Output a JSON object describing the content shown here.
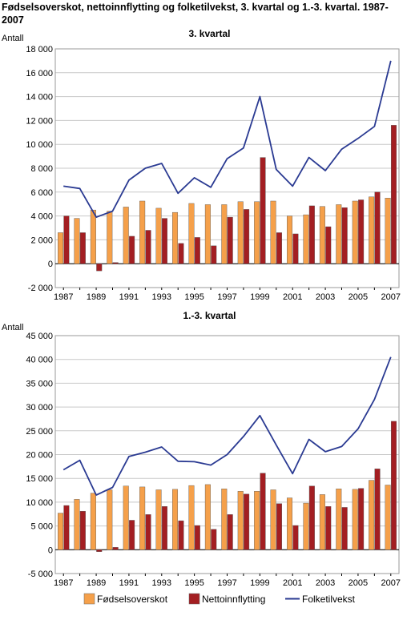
{
  "title": "Fødselsoverskot, nettoinnflytting og folketilvekst, 3. kvartal og 1.-3. kvartal. 1987-2007",
  "colors": {
    "fodselsoverskot": "#f5a04a",
    "nettoinnflytting": "#a31e22",
    "folketilvekst": "#2a3a92",
    "grid": "#c8c8c8"
  },
  "legend": [
    "Fødselsoverskot",
    "Nettoinnflytting",
    "Folketilvekst"
  ],
  "chart_data": [
    {
      "type": "bar",
      "title": "3. kvartal",
      "ylabel": "Antall",
      "ylim": [
        -2000,
        18000
      ],
      "yticks": [
        -2000,
        0,
        2000,
        4000,
        6000,
        8000,
        10000,
        12000,
        14000,
        16000,
        18000
      ],
      "ytick_labels": [
        "-2 000",
        "0",
        "2 000",
        "4 000",
        "6 000",
        "8 000",
        "10 000",
        "12 000",
        "14 000",
        "16 000",
        "18 000"
      ],
      "categories": [
        "1987",
        "1988",
        "1989",
        "1990",
        "1991",
        "1992",
        "1993",
        "1994",
        "1995",
        "1996",
        "1997",
        "1998",
        "1999",
        "2000",
        "2001",
        "2002",
        "2003",
        "2004",
        "2005",
        "2006",
        "2007"
      ],
      "xtick_labels": [
        "1987",
        "",
        "1989",
        "",
        "1991",
        "",
        "1993",
        "",
        "1995",
        "",
        "1997",
        "",
        "1999",
        "",
        "2001",
        "",
        "2003",
        "",
        "2005",
        "",
        "2007"
      ],
      "grid": true,
      "series": [
        {
          "name": "Fødselsoverskot",
          "type": "bar",
          "values": [
            2600,
            3800,
            4500,
            4400,
            4750,
            5250,
            4650,
            4300,
            5050,
            4950,
            4950,
            5200,
            5200,
            5250,
            4000,
            4100,
            4800,
            4950,
            5250,
            5600,
            5500
          ]
        },
        {
          "name": "Nettoinnflytting",
          "type": "bar",
          "values": [
            4000,
            2600,
            -600,
            100,
            2300,
            2800,
            3800,
            1700,
            2200,
            1500,
            3900,
            4550,
            8900,
            2600,
            2500,
            4850,
            3100,
            4700,
            5350,
            6000,
            11600
          ]
        },
        {
          "name": "Folketilvekst",
          "type": "line",
          "values": [
            6500,
            6300,
            3900,
            4400,
            7000,
            8000,
            8400,
            5900,
            7200,
            6400,
            8800,
            9700,
            14000,
            7900,
            6500,
            8900,
            7800,
            9600,
            10500,
            11500,
            17000
          ]
        }
      ]
    },
    {
      "type": "bar",
      "title": "1.-3. kvartal",
      "ylabel": "Antall",
      "ylim": [
        -5000,
        45000
      ],
      "yticks": [
        -5000,
        0,
        5000,
        10000,
        15000,
        20000,
        25000,
        30000,
        35000,
        40000,
        45000
      ],
      "ytick_labels": [
        "-5 000",
        "0",
        "5 000",
        "10 000",
        "15 000",
        "20 000",
        "25 000",
        "30 000",
        "35 000",
        "40 000",
        "45 000"
      ],
      "categories": [
        "1987",
        "1988",
        "1989",
        "1990",
        "1991",
        "1992",
        "1993",
        "1994",
        "1995",
        "1996",
        "1997",
        "1998",
        "1999",
        "2000",
        "2001",
        "2002",
        "2003",
        "2004",
        "2005",
        "2006",
        "2007"
      ],
      "xtick_labels": [
        "1987",
        "",
        "1989",
        "",
        "1991",
        "",
        "1993",
        "",
        "1995",
        "",
        "1997",
        "",
        "1999",
        "",
        "2001",
        "",
        "2003",
        "",
        "2005",
        "",
        "2007"
      ],
      "grid": true,
      "series": [
        {
          "name": "Fødselsoverskot",
          "type": "bar",
          "values": [
            7700,
            10600,
            11900,
            12600,
            13400,
            13200,
            12600,
            12700,
            13500,
            13700,
            12800,
            12300,
            12300,
            12600,
            10900,
            9800,
            11600,
            12800,
            12700,
            14600,
            13600
          ]
        },
        {
          "name": "Nettoinnflytting",
          "type": "bar",
          "values": [
            9300,
            8100,
            -400,
            500,
            6200,
            7400,
            9100,
            6100,
            5100,
            4300,
            7400,
            11700,
            16100,
            9700,
            5100,
            13400,
            9100,
            8900,
            12900,
            17000,
            27000
          ]
        },
        {
          "name": "Folketilvekst",
          "type": "line",
          "values": [
            16800,
            18800,
            11500,
            13100,
            19600,
            20500,
            21600,
            18600,
            18500,
            17800,
            20000,
            23800,
            28200,
            22000,
            16000,
            23200,
            20600,
            21700,
            25400,
            31600,
            40500
          ]
        }
      ]
    }
  ]
}
